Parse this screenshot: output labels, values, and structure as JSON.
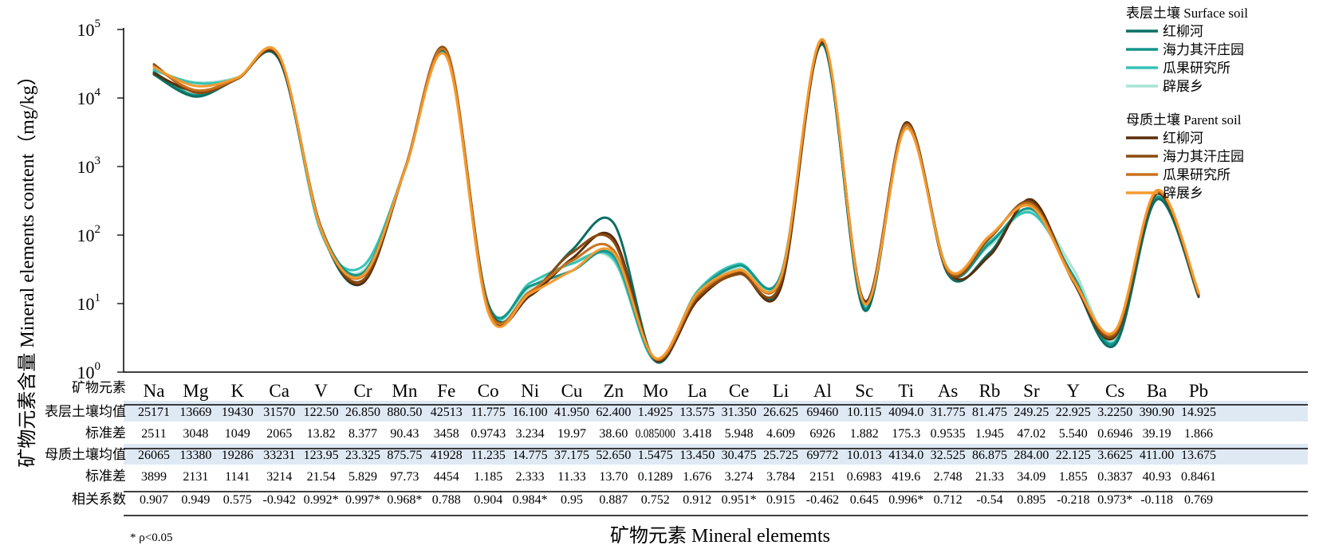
{
  "colors": {
    "surface": [
      "#0b6e64",
      "#14958b",
      "#35c3b6",
      "#a8e3d3"
    ],
    "parent": [
      "#5a2d0a",
      "#8a4a10",
      "#c8721e",
      "#f59a2e"
    ],
    "table_band": "#dfe9f4"
  },
  "chart_data": {
    "type": "line",
    "yscale": "log",
    "ylim": [
      1,
      100000
    ],
    "ylabel": "矿物元素含量 Mineral elements content（mg/kg）",
    "xlabel": "矿物元素 Mineral elememts",
    "y_ticks": [
      {
        "value": 1,
        "base": "10",
        "exp": "0"
      },
      {
        "value": 10,
        "base": "10",
        "exp": "1"
      },
      {
        "value": 100,
        "base": "10",
        "exp": "2"
      },
      {
        "value": 1000,
        "base": "10",
        "exp": "3"
      },
      {
        "value": 10000,
        "base": "10",
        "exp": "4"
      },
      {
        "value": 100000,
        "base": "10",
        "exp": "5"
      }
    ],
    "categories": [
      "Na",
      "Mg",
      "K",
      "Ca",
      "V",
      "Cr",
      "Mn",
      "Fe",
      "Co",
      "Ni",
      "Cu",
      "Zn",
      "Mo",
      "La",
      "Ce",
      "Li",
      "Al",
      "Sc",
      "Ti",
      "As",
      "Rb",
      "Sr",
      "Y",
      "Cs",
      "Ba",
      "Pb"
    ],
    "legend": {
      "surface_title": "表层土壤 Surface soil",
      "parent_title": "母质土壤 Parent soil"
    },
    "series": [
      {
        "group": "surface",
        "name": "红柳河",
        "values": [
          22000,
          10500,
          19500,
          36000,
          120,
          20,
          900,
          46000,
          9.5,
          13.5,
          60,
          150,
          1.45,
          12.5,
          28,
          18,
          62000,
          8.0,
          4300,
          27,
          55,
          310,
          22,
          2.5,
          330,
          12.5
        ]
      },
      {
        "group": "surface",
        "name": "海力其汗庄园",
        "values": [
          24000,
          11000,
          19000,
          38000,
          130,
          28,
          880,
          44000,
          10.0,
          18.0,
          30,
          50,
          1.5,
          14,
          36,
          26,
          60000,
          8.5,
          4000,
          29,
          75,
          240,
          25,
          2.7,
          350,
          13
        ]
      },
      {
        "group": "surface",
        "name": "瓜果研究所",
        "values": [
          26000,
          16500,
          19500,
          40000,
          110,
          35,
          860,
          45000,
          9.0,
          20.0,
          38,
          45,
          1.45,
          15,
          38,
          25,
          61000,
          9.0,
          4100,
          31,
          80,
          210,
          26,
          2.8,
          360,
          14
        ]
      },
      {
        "group": "surface",
        "name": "辟展乡",
        "values": [
          25000,
          17000,
          20000,
          39000,
          115,
          30,
          870,
          43000,
          8.0,
          17.0,
          40,
          42,
          1.5,
          14,
          33,
          24,
          62000,
          9.5,
          3800,
          33,
          70,
          230,
          32,
          3.0,
          380,
          15
        ]
      },
      {
        "group": "parent",
        "name": "红柳河",
        "values": [
          23000,
          12500,
          19500,
          38000,
          130,
          20,
          870,
          48000,
          8.5,
          13.0,
          45,
          90,
          1.5,
          11,
          28,
          17,
          65000,
          11,
          4400,
          30,
          50,
          330,
          21,
          3.3,
          400,
          13
        ]
      },
      {
        "group": "parent",
        "name": "海力其汗庄园",
        "values": [
          31000,
          12000,
          19000,
          40000,
          128,
          22,
          900,
          50000,
          9.0,
          14.0,
          55,
          80,
          1.55,
          12,
          27,
          20,
          68000,
          10.5,
          4200,
          29,
          90,
          300,
          22,
          3.5,
          420,
          13.5
        ]
      },
      {
        "group": "parent",
        "name": "瓜果研究所",
        "values": [
          29000,
          13000,
          19300,
          41000,
          125,
          25,
          880,
          47000,
          8.5,
          15.0,
          42,
          60,
          1.55,
          13,
          30,
          23,
          70000,
          10,
          4000,
          31,
          95,
          280,
          23,
          3.8,
          430,
          14
        ]
      },
      {
        "group": "parent",
        "name": "辟展乡",
        "values": [
          28000,
          15000,
          19800,
          42000,
          120,
          26,
          860,
          40000,
          7.5,
          14.0,
          30,
          55,
          1.6,
          14,
          31,
          24,
          72000,
          10,
          3600,
          32,
          98,
          260,
          22,
          4.0,
          450,
          14.5
        ]
      }
    ]
  },
  "table": {
    "header_label": "矿物元素",
    "rows": [
      {
        "label": "表层土壤均值",
        "band": true,
        "values": [
          "25171",
          "13669",
          "19430",
          "31570",
          "122.50",
          "26.850",
          "880.50",
          "42513",
          "11.775",
          "16.100",
          "41.950",
          "62.400",
          "1.4925",
          "13.575",
          "31.350",
          "26.625",
          "69460",
          "10.115",
          "4094.0",
          "31.775",
          "81.475",
          "249.25",
          "22.925",
          "3.2250",
          "390.90",
          "14.925"
        ]
      },
      {
        "label": "标准差",
        "band": false,
        "values": [
          "2511",
          "3048",
          "1049",
          "2065",
          "13.82",
          "8.377",
          "90.43",
          "3458",
          "0.9743",
          "3.234",
          "19.97",
          "38.60",
          "0.085000",
          "3.418",
          "5.948",
          "4.609",
          "6926",
          "1.882",
          "175.3",
          "0.9535",
          "1.945",
          "47.02",
          "5.540",
          "0.6946",
          "39.19",
          "1.866"
        ]
      },
      {
        "label": "母质土壤均值",
        "band": true,
        "values": [
          "26065",
          "13380",
          "19286",
          "33231",
          "123.95",
          "23.325",
          "875.75",
          "41928",
          "11.235",
          "14.775",
          "37.175",
          "52.650",
          "1.5475",
          "13.450",
          "30.475",
          "25.725",
          "69772",
          "10.013",
          "4134.0",
          "32.525",
          "86.875",
          "284.00",
          "22.125",
          "3.6625",
          "411.00",
          "13.675"
        ]
      },
      {
        "label": "标准差",
        "band": false,
        "values": [
          "3899",
          "2131",
          "1141",
          "3214",
          "21.54",
          "5.829",
          "97.73",
          "4454",
          "1.185",
          "2.333",
          "11.33",
          "13.70",
          "0.1289",
          "1.676",
          "3.274",
          "3.784",
          "2151",
          "0.6983",
          "419.6",
          "2.748",
          "21.33",
          "34.09",
          "1.855",
          "0.3837",
          "40.93",
          "0.8461"
        ]
      },
      {
        "label": "相关系数",
        "band": false,
        "values": [
          "0.907",
          "0.949",
          "0.575",
          "-0.942",
          "0.992*",
          "0.997*",
          "0.968*",
          "0.788",
          "0.904",
          "0.984*",
          "0.95",
          "0.887",
          "0.752",
          "0.912",
          "0.951*",
          "0.915",
          "-0.462",
          "0.645",
          "0.996*",
          "0.712",
          "-0.54",
          "0.895",
          "-0.218",
          "0.973*",
          "-0.118",
          "0.769"
        ]
      }
    ],
    "footnote": "* ρ<0.05"
  }
}
